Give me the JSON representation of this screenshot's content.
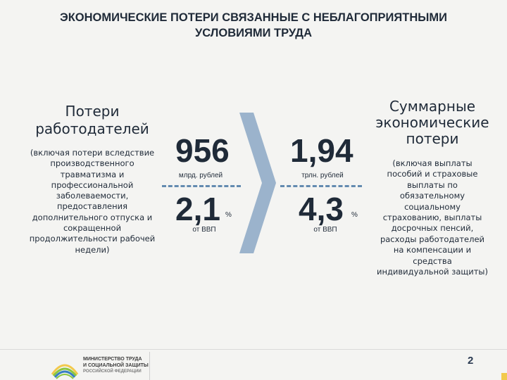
{
  "slide": {
    "title_line1": "ЭКОНОМИЧЕСКИЕ ПОТЕРИ СВЯЗАННЫЕ С НЕБЛАГОПРИЯТНЫМИ",
    "title_line2": "УСЛОВИЯМИ ТРУДА",
    "page_number": "2"
  },
  "left": {
    "heading_line1": "Потери",
    "heading_line2": "работодателей",
    "desc": [
      "(включая потери вследствие",
      "производственного",
      "травматизма и",
      "профессиональной",
      "заболеваемости,",
      "предоставления",
      "дополнительного отпуска и",
      "сокращенной",
      "продолжительности рабочей",
      "недели)"
    ]
  },
  "employer_figures": {
    "amount": "956",
    "amount_unit": "млрд. рублей",
    "gdp_share": "2,1",
    "gdp_share_sign": "%",
    "gdp_label": "от ВВП"
  },
  "total_figures": {
    "amount": "1,94",
    "amount_unit": "трлн. рублей",
    "gdp_share": "4,3",
    "gdp_share_sign": "%",
    "gdp_label": "от ВВП"
  },
  "right": {
    "heading": [
      "Суммарные",
      "экономические",
      "потери"
    ],
    "desc": [
      "(включая выплаты",
      "пособий и страховые",
      "выплаты по",
      "обязательному",
      "социальному",
      "страхованию, выплаты",
      "досрочных пенсий,",
      "расходы работодателей",
      "на компенсации и",
      "средства",
      "индивидуальной защиты)"
    ]
  },
  "footer": {
    "ministry_line1": "МИНИСТЕРСТВО ТРУДА",
    "ministry_line2": "И СОЦИАЛЬНОЙ ЗАЩИТЫ",
    "ministry_line3": "РОССИЙСКОЙ ФЕДЕРАЦИИ"
  },
  "colors": {
    "accent_blue": "#4a79a5",
    "chevron_fill": "#9bb3cc",
    "logo_green": "#8cc63f",
    "logo_blue": "#3a7fc1",
    "logo_yellow": "#f2c94c"
  }
}
